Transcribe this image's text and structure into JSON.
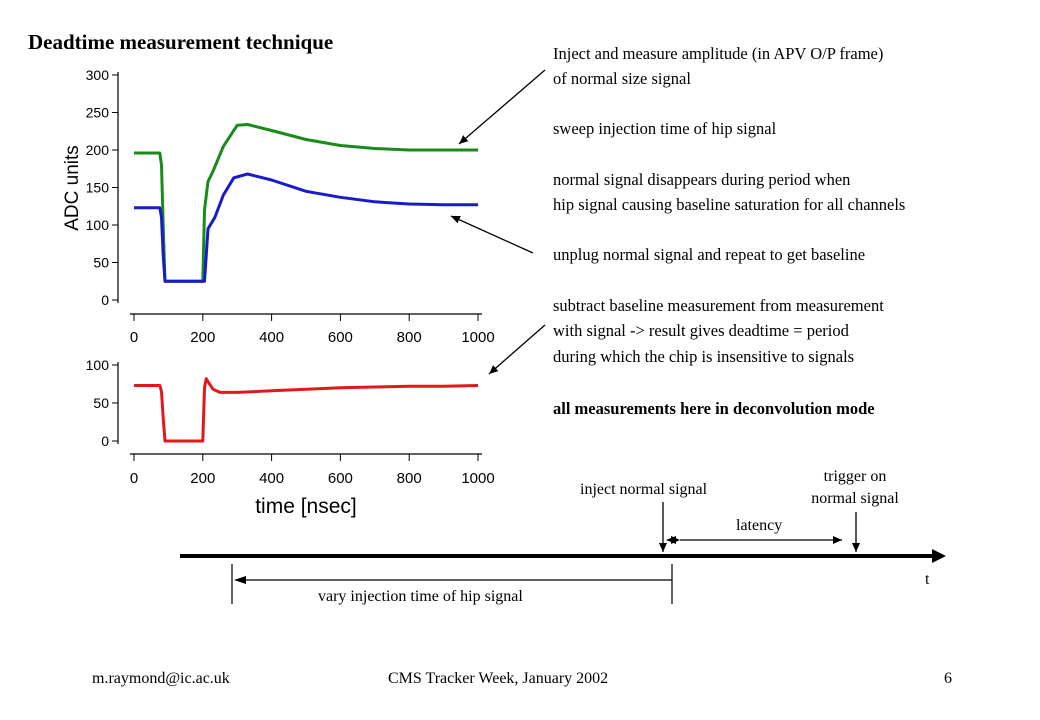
{
  "slide": {
    "title": "Deadtime measurement technique",
    "bullets": [
      "Inject and measure amplitude (in APV O/P frame)",
      "of normal size signal",
      "sweep injection time of hip signal",
      "normal signal disappears during period when",
      "hip signal causing baseline saturation for all channels",
      "unplug normal signal and repeat to get baseline",
      "subtract baseline measurement from measurement",
      "with signal -> result gives deadtime = period",
      "during which the chip is insensitive to signals",
      "all measurements  here in deconvolution mode"
    ],
    "footer": {
      "left": "m.raymond@ic.ac.uk",
      "center": "CMS Tracker Week, January 2002",
      "page": "6"
    },
    "timeline": {
      "inject_label": "inject normal signal",
      "trigger_label_1": "trigger on",
      "trigger_label_2": "normal signal",
      "latency_label": "latency",
      "t_label": "t",
      "vary_label": "vary injection time of hip signal"
    }
  },
  "chart_data": [
    {
      "type": "line",
      "title": "",
      "xlabel": "",
      "ylabel": "ADC units",
      "xlim": [
        0,
        1000
      ],
      "ylim": [
        0,
        300
      ],
      "xticks": [
        0,
        200,
        400,
        600,
        800,
        1000
      ],
      "yticks": [
        0,
        50,
        100,
        150,
        200,
        250,
        300
      ],
      "series": [
        {
          "color": "#1a8a1a",
          "x": [
            0,
            75,
            80,
            85,
            90,
            200,
            205,
            215,
            230,
            260,
            300,
            330,
            400,
            500,
            600,
            700,
            800,
            900,
            1000
          ],
          "values": [
            196,
            196,
            180,
            100,
            25,
            25,
            120,
            158,
            172,
            205,
            233,
            234,
            226,
            214,
            206,
            202,
            200,
            200,
            200
          ]
        },
        {
          "color": "#1a1acd",
          "x": [
            0,
            75,
            80,
            85,
            90,
            200,
            205,
            215,
            235,
            260,
            290,
            330,
            400,
            500,
            600,
            700,
            800,
            900,
            1000
          ],
          "values": [
            123,
            123,
            110,
            60,
            25,
            25,
            25,
            95,
            110,
            140,
            163,
            168,
            160,
            145,
            137,
            131,
            128,
            127,
            127
          ]
        }
      ]
    },
    {
      "type": "line",
      "title": "",
      "xlabel": "time [nsec]",
      "ylabel": "",
      "xlim": [
        0,
        1000
      ],
      "ylim": [
        0,
        100
      ],
      "xticks": [
        0,
        200,
        400,
        600,
        800,
        1000
      ],
      "yticks": [
        0,
        50,
        100
      ],
      "series": [
        {
          "color": "#e01a1a",
          "x": [
            0,
            75,
            80,
            85,
            90,
            200,
            205,
            210,
            215,
            230,
            250,
            300,
            400,
            500,
            600,
            700,
            800,
            900,
            1000
          ],
          "values": [
            73,
            73,
            65,
            30,
            0,
            0,
            70,
            82,
            78,
            68,
            64,
            64,
            66,
            68,
            70,
            71,
            72,
            72,
            73
          ]
        }
      ]
    }
  ]
}
